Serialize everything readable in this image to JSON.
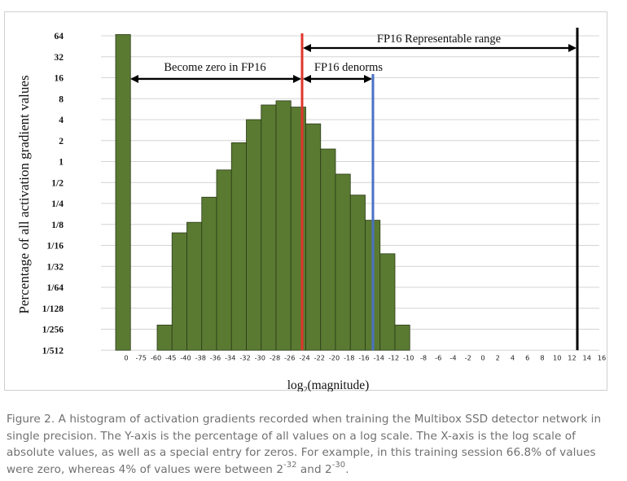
{
  "chart_data": {
    "type": "bar",
    "ylabel": "Percentage of all activation gradient values",
    "xlabel_prefix": "log",
    "xlabel_sub": "2",
    "xlabel_suffix": "(magnitude)",
    "yscale": "log2",
    "y_tick_labels": [
      "64",
      "32",
      "16",
      "8",
      "4",
      "2",
      "1",
      "1/2",
      "1/4",
      "1/8",
      "1/16",
      "1/32",
      "1/64",
      "1/128",
      "1/256",
      "1/512"
    ],
    "x_tick_labels": [
      "0",
      "-75",
      "-60",
      "-45",
      "-40",
      "-38",
      "-36",
      "-34",
      "-32",
      "-30",
      "-28",
      "-26",
      "-24",
      "-22",
      "-20",
      "-18",
      "-16",
      "-14",
      "-12",
      "-10",
      "-8",
      "-6",
      "-4",
      "-2",
      "0",
      "2",
      "4",
      "6",
      "8",
      "10",
      "12",
      "14",
      "16"
    ],
    "bars": [
      {
        "label": "0",
        "log2_value": 6.06
      },
      {
        "label": "-60 to -45",
        "log2_value": -7.8
      },
      {
        "label": "-45 to -40",
        "log2_value": -3.4
      },
      {
        "label": "-40 to -38",
        "log2_value": -2.9
      },
      {
        "label": "-38 to -36",
        "log2_value": -1.7
      },
      {
        "label": "-36 to -34",
        "log2_value": -0.4
      },
      {
        "label": "-34 to -32",
        "log2_value": 0.9
      },
      {
        "label": "-32 to -30",
        "log2_value": 2.0
      },
      {
        "label": "-30 to -28",
        "log2_value": 2.7
      },
      {
        "label": "-28 to -26",
        "log2_value": 2.9
      },
      {
        "label": "-26 to -24",
        "log2_value": 2.6
      },
      {
        "label": "-24 to -22",
        "log2_value": 1.8
      },
      {
        "label": "-22 to -20",
        "log2_value": 0.6
      },
      {
        "label": "-20 to -18",
        "log2_value": -0.6
      },
      {
        "label": "-18 to -16",
        "log2_value": -1.6
      },
      {
        "label": "-16 to -14",
        "log2_value": -2.8
      },
      {
        "label": "-14 to -12",
        "log2_value": -4.4
      },
      {
        "label": "-12 to -10",
        "log2_value": -7.8
      }
    ],
    "reference_lines": [
      {
        "name": "fp16-min-denorm",
        "at_tick": "-24",
        "color": "#e0352b"
      },
      {
        "name": "fp16-min-normal",
        "at_tick": "-14",
        "color": "#4a72c4"
      },
      {
        "name": "fp16-max",
        "at_tick": "16",
        "color": "#000000"
      }
    ],
    "annotations": {
      "become_zero": "Become zero in FP16",
      "denorms": "FP16 denorms",
      "representable": "FP16 Representable range"
    },
    "colors": {
      "bar": "#5a7a32",
      "bar_edge": "#2a3a17",
      "grid": "#d4d4d4"
    }
  },
  "caption": {
    "text_1": "Figure 2. A histogram of activation gradients recorded when training the Multibox SSD detector network in single precision. The Y-axis is the percentage of all values on a log scale. The X-axis is the log scale of absolute values, as well as a special entry for zeros. For example, in this training session 66.8% of values were zero, whereas 4% of values were between 2",
    "sup_1": "-32",
    "mid": " and 2",
    "sup_2": "-30",
    "end": "."
  }
}
